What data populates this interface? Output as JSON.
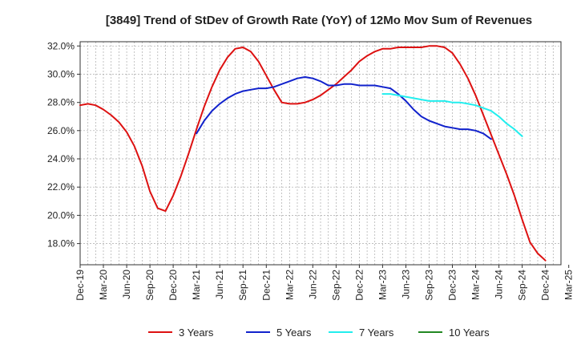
{
  "chart_data": {
    "type": "line",
    "title": "[3849]  Trend of StDev of Growth Rate (YoY) of 12Mo Mov Sum of Revenues",
    "xlabel": "",
    "ylabel": "",
    "ylim": [
      16.5,
      32.3
    ],
    "yticks": [
      18,
      20,
      22,
      24,
      26,
      28,
      30,
      32
    ],
    "ytick_labels": [
      "18.0%",
      "20.0%",
      "22.0%",
      "24.0%",
      "26.0%",
      "28.0%",
      "30.0%",
      "32.0%"
    ],
    "x_start": "Dec-19",
    "x_count": 63,
    "x_tick_labels": [
      "Dec-19",
      "Mar-20",
      "Jun-20",
      "Sep-20",
      "Dec-20",
      "Mar-21",
      "Jun-21",
      "Sep-21",
      "Dec-21",
      "Mar-22",
      "Jun-22",
      "Sep-22",
      "Dec-22",
      "Mar-23",
      "Jun-23",
      "Sep-23",
      "Dec-23",
      "Mar-24",
      "Jun-24",
      "Sep-24",
      "Dec-24",
      "Mar-25"
    ],
    "grid": true,
    "legend_position": "bottom",
    "series": [
      {
        "name": "3 Years",
        "color": "#dd1111",
        "start_index": 0,
        "values": [
          27.8,
          27.9,
          27.8,
          27.5,
          27.1,
          26.6,
          25.9,
          24.9,
          23.5,
          21.7,
          20.5,
          20.3,
          21.4,
          22.8,
          24.4,
          26.1,
          27.7,
          29.1,
          30.3,
          31.2,
          31.8,
          31.9,
          31.6,
          30.9,
          29.9,
          28.9,
          28.0,
          27.9,
          27.9,
          28.0,
          28.2,
          28.5,
          28.9,
          29.3,
          29.8,
          30.3,
          30.9,
          31.3,
          31.6,
          31.8,
          31.8,
          31.9,
          31.9,
          31.9,
          31.9,
          32.0,
          32.0,
          31.9,
          31.5,
          30.7,
          29.7,
          28.5,
          27.1,
          25.7,
          24.3,
          22.9,
          21.4,
          19.7,
          18.1,
          17.3,
          16.8
        ]
      },
      {
        "name": "5 Years",
        "color": "#1122cc",
        "start_index": 15,
        "values": [
          25.8,
          26.7,
          27.4,
          27.9,
          28.3,
          28.6,
          28.8,
          28.9,
          29.0,
          29.0,
          29.1,
          29.3,
          29.5,
          29.7,
          29.8,
          29.7,
          29.5,
          29.2,
          29.2,
          29.3,
          29.3,
          29.2,
          29.2,
          29.2,
          29.1,
          29.0,
          28.6,
          28.1,
          27.5,
          27.0,
          26.7,
          26.5,
          26.3,
          26.2,
          26.1,
          26.1,
          26.0,
          25.8,
          25.4
        ]
      },
      {
        "name": "7 Years",
        "color": "#22eeee",
        "start_index": 39,
        "values": [
          28.6,
          28.6,
          28.5,
          28.4,
          28.3,
          28.2,
          28.1,
          28.1,
          28.1,
          28.0,
          28.0,
          27.9,
          27.8,
          27.6,
          27.4,
          27.0,
          26.5,
          26.1,
          25.6
        ]
      },
      {
        "name": "10 Years",
        "color": "#228822",
        "start_index": 0,
        "values": []
      }
    ]
  }
}
